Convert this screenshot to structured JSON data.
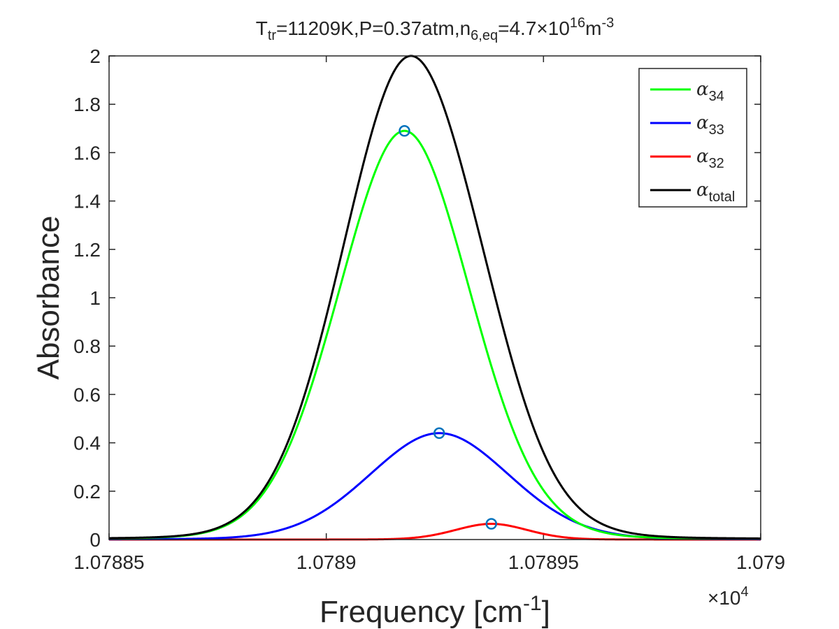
{
  "chart_data": {
    "type": "line",
    "title": {
      "T_main": "T",
      "T_sub": "tr",
      "part1": "=11209K,P=0.37atm,n",
      "n_sub": "6,eq",
      "part2": "=4.7",
      "times": "×",
      "base": "10",
      "exp": "16",
      "unit": "m",
      "unit_exp": "-3"
    },
    "xlabel": {
      "main": "Frequency [cm",
      "exp": "-1",
      "close": "]"
    },
    "ylabel": "Absorbance",
    "x_multiplier": {
      "times": "×",
      "base": "10",
      "exp": "4"
    },
    "xlim": [
      1.07885,
      1.079
    ],
    "ylim": [
      0,
      2
    ],
    "x_ticks": [
      1.07885,
      1.0789,
      1.07895,
      1.079
    ],
    "x_tick_labels": [
      "1.07885",
      "1.0789",
      "1.07895",
      "1.079"
    ],
    "y_ticks": [
      0,
      0.2,
      0.4,
      0.6,
      0.8,
      1,
      1.2,
      1.4,
      1.6,
      1.8,
      2
    ],
    "y_tick_labels": [
      "0",
      "0.2",
      "0.4",
      "0.6",
      "0.8",
      "1",
      "1.2",
      "1.4",
      "1.6",
      "1.8",
      "2"
    ],
    "grid": false,
    "legend_position": "top-right",
    "series": [
      {
        "name": "α34",
        "name_main": "α",
        "name_sub": "34",
        "color": "#00ff00",
        "peak_x": 1.078918,
        "peak_y": 1.69,
        "sigma": 1.55e-05
      },
      {
        "name": "α33",
        "name_main": "α",
        "name_sub": "33",
        "color": "#0000ff",
        "peak_x": 1.078926,
        "peak_y": 0.44,
        "sigma": 1.65e-05
      },
      {
        "name": "α32",
        "name_main": "α",
        "name_sub": "32",
        "color": "#ff0000",
        "peak_x": 1.078938,
        "peak_y": 0.065,
        "sigma": 8.5e-06
      },
      {
        "name": "αtotal",
        "name_main": "α",
        "name_sub": "total",
        "color": "#000000",
        "peak_x": 1.078919,
        "peak_y": 2.0
      }
    ],
    "peak_markers": [
      {
        "x": 1.078918,
        "y": 1.69
      },
      {
        "x": 1.078926,
        "y": 0.44
      },
      {
        "x": 1.078938,
        "y": 0.065
      }
    ],
    "marker_color": "#0072bd"
  }
}
